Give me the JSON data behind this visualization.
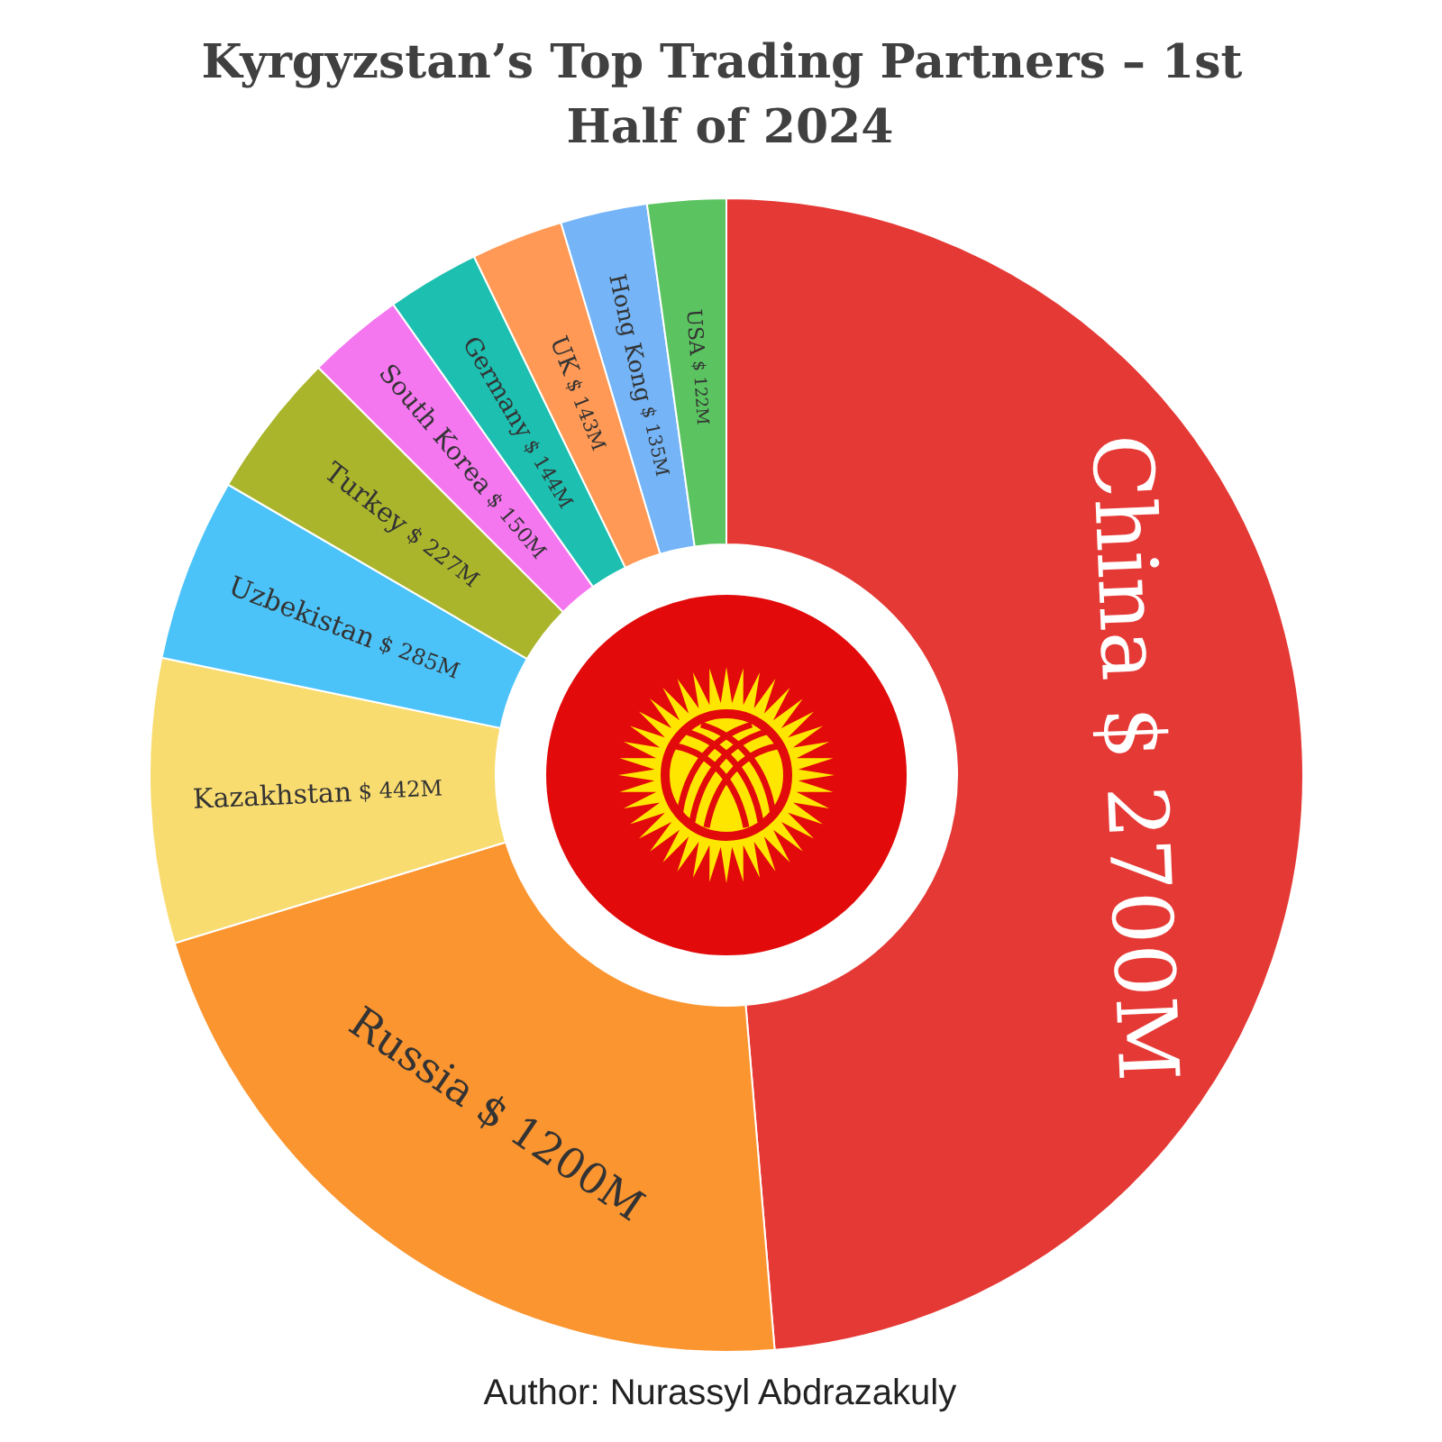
{
  "chart_data": {
    "type": "donut",
    "title": "Kyrgyzstan’s Top Trading Partners – 1st Half of 2024",
    "categories": [
      "China",
      "Russia",
      "Kazakhstan",
      "Uzbekistan",
      "Turkey",
      "South Korea",
      "Germany",
      "UK",
      "Hong Kong",
      "USA"
    ],
    "values": [
      2700,
      1200,
      442,
      285,
      227,
      150,
      144,
      143,
      135,
      122
    ],
    "value_labels": [
      "$ 2700M",
      "$ 1200M",
      "$ 442M",
      "$ 285M",
      "$ 227M",
      "$ 150M",
      "$ 144M",
      "$ 143M",
      "$ 135M",
      "$ 122M"
    ],
    "colors": [
      "#e53935",
      "#fb9530",
      "#f8dc70",
      "#4cc3f8",
      "#aab52c",
      "#f577f0",
      "#1dbfb0",
      "#ff9955",
      "#74b4f7",
      "#5bc460"
    ],
    "annotations": [
      "Author: Nurassyl Abdrazakuly"
    ]
  }
}
